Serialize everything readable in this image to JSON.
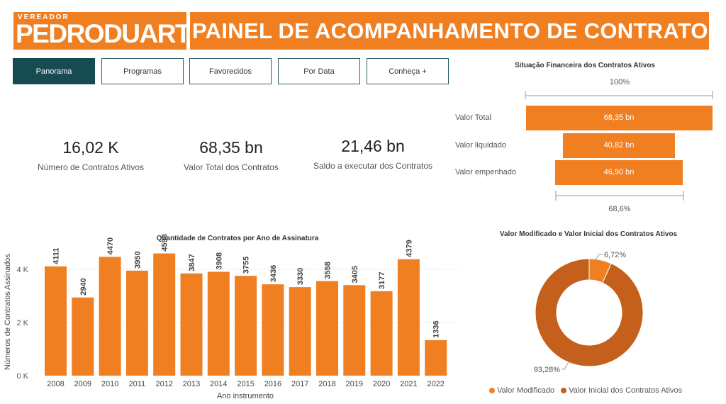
{
  "header": {
    "logo_small": "VEREADOR",
    "logo_big": "PEDRODUARTE",
    "title": "PAINEL DE ACOMPANHAMENTO DE CONTRATOS"
  },
  "nav": [
    {
      "label": "Panorama",
      "active": true
    },
    {
      "label": "Programas",
      "active": false
    },
    {
      "label": "Favorecidos",
      "active": false
    },
    {
      "label": "Por Data",
      "active": false
    },
    {
      "label": "Conheça +",
      "active": false
    }
  ],
  "kpis": [
    {
      "value": "16,02 K",
      "label": "Número de Contratos Ativos"
    },
    {
      "value": "68,35 bn",
      "label": "Valor Total dos Contratos"
    },
    {
      "value": "21,46 bn",
      "label": "Saldo a executar dos Contratos"
    }
  ],
  "funnel": {
    "title": "Situação Financeira dos Contratos Ativos",
    "top_pct": "100%",
    "bottom_pct": "68,6%",
    "rows": [
      {
        "label": "Valor Total",
        "value_text": "68,35 bn",
        "value": 68.35
      },
      {
        "label": "Valor liquidado",
        "value_text": "40,82 bn",
        "value": 40.82
      },
      {
        "label": "Valor empenhado",
        "value_text": "46,90 bn",
        "value": 46.9
      }
    ]
  },
  "colors": {
    "accent": "#f07f22",
    "nav_active": "#174b52",
    "donut_dark": "#c4601c"
  },
  "chart_data": [
    {
      "type": "bar",
      "title": "Quantidade de Contratos por Ano de Assinatura",
      "xlabel": "Ano instrumento",
      "ylabel": "Números de Contratos Assinados",
      "categories": [
        "2008",
        "2009",
        "2010",
        "2011",
        "2012",
        "2013",
        "2014",
        "2015",
        "2016",
        "2017",
        "2018",
        "2019",
        "2020",
        "2021",
        "2022"
      ],
      "values": [
        4111,
        2940,
        4470,
        3950,
        4598,
        3847,
        3908,
        3755,
        3436,
        3330,
        3558,
        3405,
        3177,
        4379,
        1336
      ],
      "ylim": [
        0,
        4800
      ],
      "yticks": [
        {
          "v": 0,
          "label": "0 K"
        },
        {
          "v": 2000,
          "label": "2 K"
        },
        {
          "v": 4000,
          "label": "4 K"
        }
      ],
      "grid": true
    },
    {
      "type": "pie",
      "title": "Valor Modificado e Valor Inicial dos Contratos Ativos",
      "labels": [
        "Valor Modificado",
        "Valor Inicial dos Contratos Ativos"
      ],
      "values": [
        6.72,
        93.28
      ],
      "value_labels": [
        "6,72%",
        "93,28%"
      ],
      "colors": [
        "#f07f22",
        "#c4601c"
      ],
      "legend": "bottom"
    }
  ]
}
